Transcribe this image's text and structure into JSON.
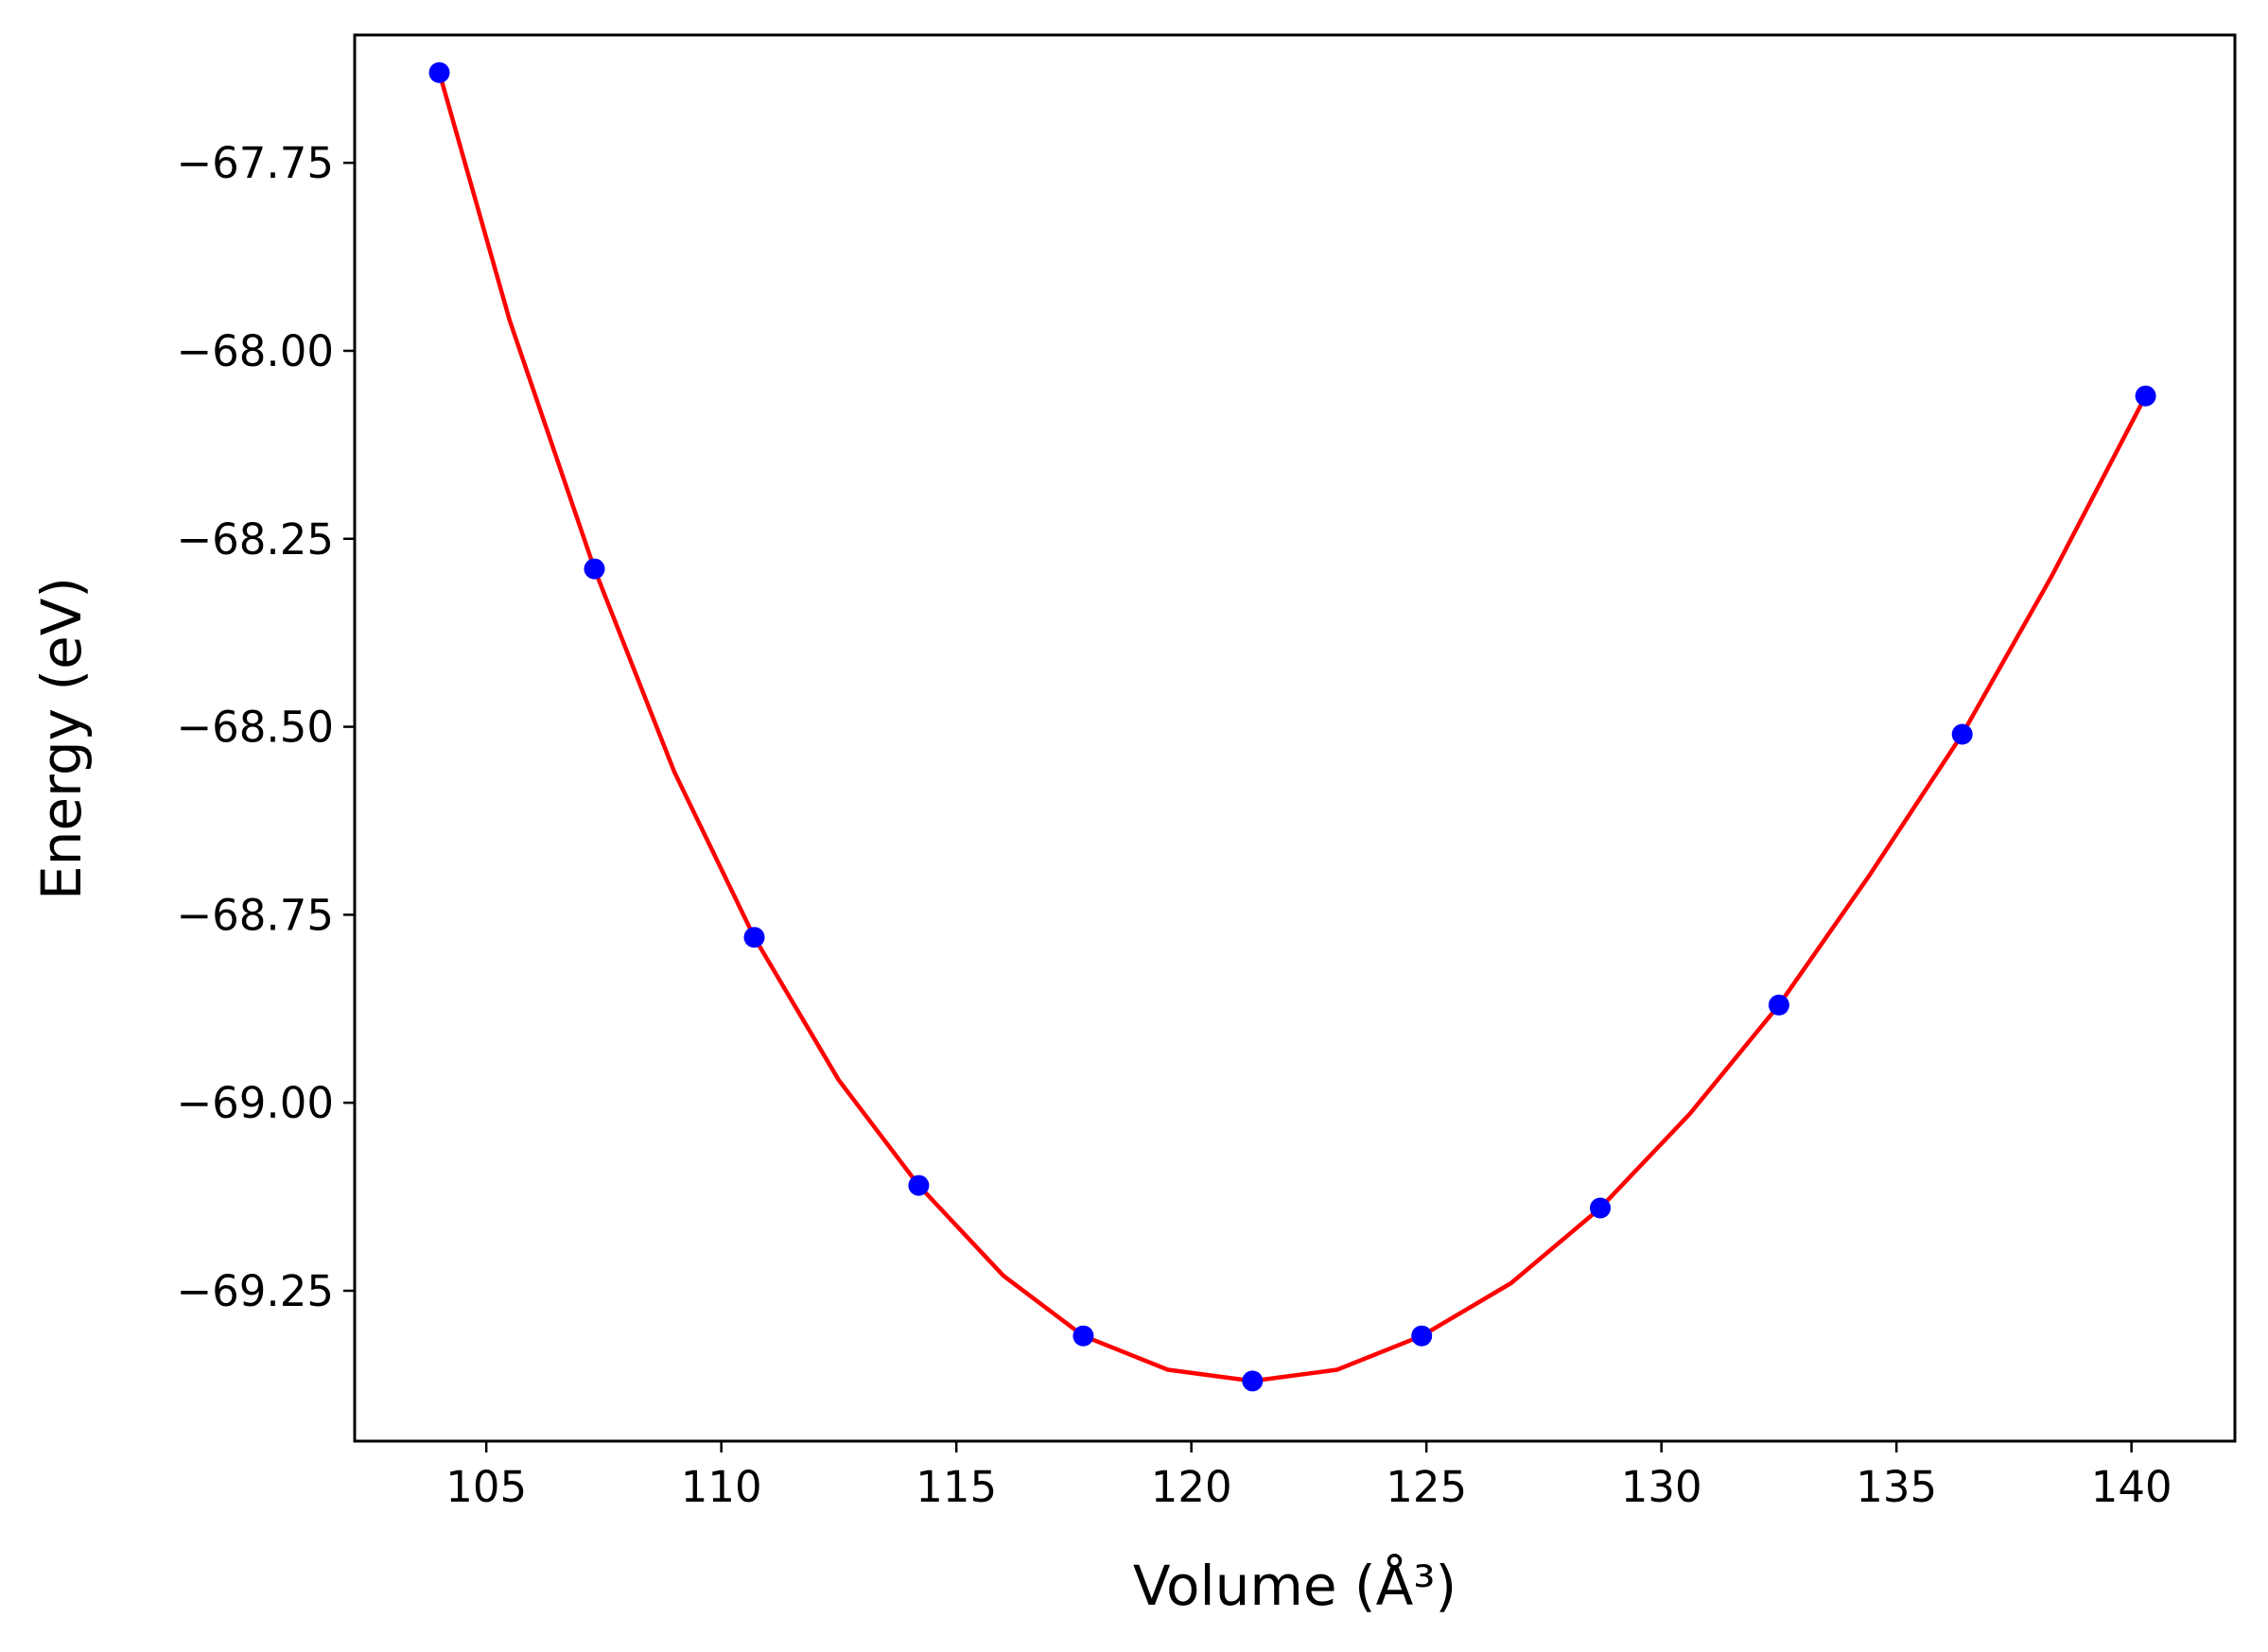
{
  "chart_data": {
    "type": "scatter",
    "title": "",
    "xlabel": "Volume (Å³)",
    "ylabel": "Energy (eV)",
    "xlim": [
      102.2,
      142.2
    ],
    "ylim": [
      -69.45,
      -67.58
    ],
    "xticks": [
      105,
      110,
      115,
      120,
      125,
      130,
      135,
      140
    ],
    "xtick_labels": [
      "105",
      "110",
      "115",
      "120",
      "125",
      "130",
      "135",
      "140"
    ],
    "yticks": [
      -67.75,
      -68.0,
      -68.25,
      -68.5,
      -68.75,
      -69.0,
      -69.25
    ],
    "ytick_labels": [
      "−67.75",
      "−68.00",
      "−68.25",
      "−68.50",
      "−68.75",
      "−69.00",
      "−69.25"
    ],
    "grid": false,
    "legend": "none",
    "series": [
      {
        "kind": "points",
        "color": "#0000ff",
        "x": [
          104.0,
          107.3,
          110.7,
          114.2,
          117.7,
          121.3,
          124.9,
          128.7,
          132.5,
          136.4,
          140.3
        ],
        "y": [
          -67.63,
          -68.29,
          -68.78,
          -69.11,
          -69.31,
          -69.37,
          -69.31,
          -69.14,
          -68.87,
          -68.51,
          -68.06
        ]
      },
      {
        "kind": "fit-curve",
        "color": "#ff0000",
        "x": [
          104.0,
          105.5,
          107.3,
          109.0,
          110.7,
          112.5,
          114.2,
          116.0,
          117.7,
          119.5,
          121.3,
          123.1,
          124.9,
          126.8,
          128.7,
          130.6,
          132.5,
          134.4,
          136.4,
          138.3,
          140.3
        ],
        "y": [
          -67.63,
          -67.96,
          -68.29,
          -68.56,
          -68.78,
          -68.97,
          -69.11,
          -69.23,
          -69.31,
          -69.355,
          -69.37,
          -69.355,
          -69.31,
          -69.24,
          -69.14,
          -69.015,
          -68.87,
          -68.7,
          -68.51,
          -68.3,
          -68.06
        ]
      }
    ]
  }
}
